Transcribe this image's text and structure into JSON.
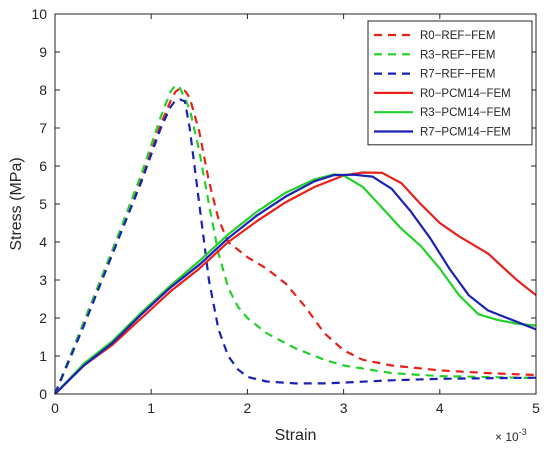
{
  "chart_data": {
    "type": "line",
    "xlabel": "Strain",
    "ylabel": "Stress (MPa)",
    "x_scale_multiplier": "× 10",
    "x_scale_exponent": "-3",
    "xlim": [
      0,
      5
    ],
    "ylim": [
      0,
      10
    ],
    "xticks": [
      "0",
      "1",
      "2",
      "3",
      "4",
      "5"
    ],
    "yticks": [
      "0",
      "1",
      "2",
      "3",
      "4",
      "5",
      "6",
      "7",
      "8",
      "9",
      "10"
    ],
    "grid": false,
    "legend_position": "top-right",
    "series": [
      {
        "name": "R0−REF−FEM",
        "color": "#e8201c",
        "dash": "dashed",
        "points": [
          [
            0,
            0
          ],
          [
            0.3,
            1.9
          ],
          [
            0.6,
            3.8
          ],
          [
            0.9,
            5.7
          ],
          [
            1.1,
            7.1
          ],
          [
            1.2,
            7.7
          ],
          [
            1.25,
            7.95
          ],
          [
            1.3,
            8.05
          ],
          [
            1.35,
            7.98
          ],
          [
            1.4,
            7.8
          ],
          [
            1.5,
            6.9
          ],
          [
            1.6,
            5.6
          ],
          [
            1.7,
            4.6
          ],
          [
            1.8,
            4.0
          ],
          [
            2.0,
            3.6
          ],
          [
            2.2,
            3.3
          ],
          [
            2.4,
            2.9
          ],
          [
            2.6,
            2.3
          ],
          [
            2.8,
            1.6
          ],
          [
            3.0,
            1.15
          ],
          [
            3.2,
            0.9
          ],
          [
            3.5,
            0.75
          ],
          [
            4.0,
            0.62
          ],
          [
            4.5,
            0.55
          ],
          [
            5.0,
            0.5
          ]
        ]
      },
      {
        "name": "R3−REF−FEM",
        "color": "#24d02a",
        "dash": "dashed",
        "points": [
          [
            0,
            0
          ],
          [
            0.3,
            1.9
          ],
          [
            0.6,
            3.8
          ],
          [
            0.9,
            5.8
          ],
          [
            1.1,
            7.3
          ],
          [
            1.2,
            7.95
          ],
          [
            1.25,
            8.12
          ],
          [
            1.3,
            8.05
          ],
          [
            1.4,
            7.5
          ],
          [
            1.5,
            6.4
          ],
          [
            1.6,
            5.0
          ],
          [
            1.7,
            3.7
          ],
          [
            1.8,
            2.8
          ],
          [
            1.9,
            2.3
          ],
          [
            2.0,
            2.0
          ],
          [
            2.2,
            1.6
          ],
          [
            2.5,
            1.2
          ],
          [
            2.8,
            0.9
          ],
          [
            3.0,
            0.75
          ],
          [
            3.5,
            0.55
          ],
          [
            4.0,
            0.47
          ],
          [
            5.0,
            0.42
          ]
        ]
      },
      {
        "name": "R7−REF−FEM",
        "color": "#1a22b4",
        "dash": "dashed",
        "points": [
          [
            0,
            0
          ],
          [
            0.3,
            1.8
          ],
          [
            0.6,
            3.7
          ],
          [
            0.9,
            5.6
          ],
          [
            1.1,
            7.0
          ],
          [
            1.2,
            7.55
          ],
          [
            1.25,
            7.72
          ],
          [
            1.3,
            7.75
          ],
          [
            1.35,
            7.7
          ],
          [
            1.4,
            7.0
          ],
          [
            1.5,
            5.0
          ],
          [
            1.6,
            3.0
          ],
          [
            1.7,
            1.7
          ],
          [
            1.8,
            1.0
          ],
          [
            1.9,
            0.65
          ],
          [
            2.0,
            0.45
          ],
          [
            2.2,
            0.33
          ],
          [
            2.5,
            0.28
          ],
          [
            2.8,
            0.28
          ],
          [
            3.0,
            0.3
          ],
          [
            3.5,
            0.36
          ],
          [
            4.0,
            0.4
          ],
          [
            5.0,
            0.43
          ]
        ]
      },
      {
        "name": "R0−PCM14−FEM",
        "color": "#e8201c",
        "dash": "solid",
        "points": [
          [
            0,
            0
          ],
          [
            0.3,
            0.75
          ],
          [
            0.6,
            1.3
          ],
          [
            0.9,
            2.0
          ],
          [
            1.2,
            2.7
          ],
          [
            1.5,
            3.3
          ],
          [
            1.8,
            4.0
          ],
          [
            2.1,
            4.55
          ],
          [
            2.4,
            5.05
          ],
          [
            2.7,
            5.45
          ],
          [
            3.0,
            5.75
          ],
          [
            3.2,
            5.83
          ],
          [
            3.4,
            5.82
          ],
          [
            3.6,
            5.55
          ],
          [
            3.8,
            5.0
          ],
          [
            4.0,
            4.5
          ],
          [
            4.2,
            4.15
          ],
          [
            4.5,
            3.7
          ],
          [
            4.8,
            3.0
          ],
          [
            5.0,
            2.6
          ]
        ]
      },
      {
        "name": "R3−PCM14−FEM",
        "color": "#24d02a",
        "dash": "solid",
        "points": [
          [
            0,
            0
          ],
          [
            0.3,
            0.8
          ],
          [
            0.6,
            1.4
          ],
          [
            0.9,
            2.15
          ],
          [
            1.2,
            2.85
          ],
          [
            1.5,
            3.5
          ],
          [
            1.8,
            4.2
          ],
          [
            2.1,
            4.8
          ],
          [
            2.4,
            5.3
          ],
          [
            2.7,
            5.65
          ],
          [
            2.9,
            5.78
          ],
          [
            3.0,
            5.75
          ],
          [
            3.2,
            5.45
          ],
          [
            3.4,
            4.9
          ],
          [
            3.6,
            4.35
          ],
          [
            3.8,
            3.9
          ],
          [
            4.0,
            3.3
          ],
          [
            4.2,
            2.6
          ],
          [
            4.4,
            2.1
          ],
          [
            4.6,
            1.95
          ],
          [
            4.8,
            1.85
          ],
          [
            5.0,
            1.8
          ]
        ]
      },
      {
        "name": "R7−PCM14−FEM",
        "color": "#1a22b4",
        "dash": "solid",
        "points": [
          [
            0,
            0
          ],
          [
            0.3,
            0.75
          ],
          [
            0.6,
            1.35
          ],
          [
            0.9,
            2.1
          ],
          [
            1.2,
            2.8
          ],
          [
            1.5,
            3.4
          ],
          [
            1.8,
            4.1
          ],
          [
            2.1,
            4.7
          ],
          [
            2.4,
            5.2
          ],
          [
            2.7,
            5.6
          ],
          [
            2.9,
            5.76
          ],
          [
            3.1,
            5.77
          ],
          [
            3.3,
            5.72
          ],
          [
            3.5,
            5.4
          ],
          [
            3.7,
            4.8
          ],
          [
            3.9,
            4.1
          ],
          [
            4.1,
            3.3
          ],
          [
            4.3,
            2.6
          ],
          [
            4.5,
            2.2
          ],
          [
            4.7,
            2.0
          ],
          [
            4.85,
            1.85
          ],
          [
            5.0,
            1.7
          ]
        ]
      }
    ]
  }
}
